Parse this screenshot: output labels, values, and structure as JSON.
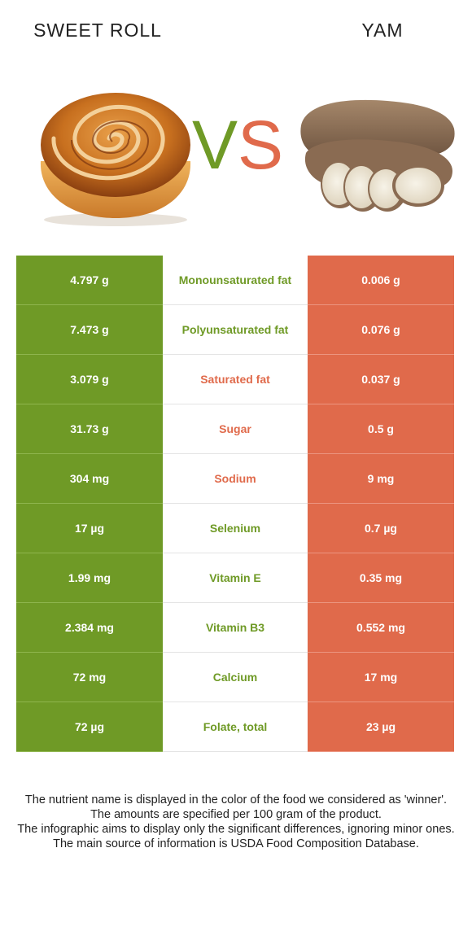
{
  "header": {
    "left_food": "SWEET ROLL",
    "right_food": "YAM"
  },
  "vs": {
    "v": "V",
    "s": "S"
  },
  "colors": {
    "left": "#6f9a26",
    "right": "#e06a4b"
  },
  "rows": [
    {
      "left": "4.797 g",
      "nutrient": "Monounsaturated fat",
      "right": "0.006 g",
      "winner": "left"
    },
    {
      "left": "7.473 g",
      "nutrient": "Polyunsaturated fat",
      "right": "0.076 g",
      "winner": "left"
    },
    {
      "left": "3.079 g",
      "nutrient": "Saturated fat",
      "right": "0.037 g",
      "winner": "right"
    },
    {
      "left": "31.73 g",
      "nutrient": "Sugar",
      "right": "0.5 g",
      "winner": "right"
    },
    {
      "left": "304 mg",
      "nutrient": "Sodium",
      "right": "9 mg",
      "winner": "right"
    },
    {
      "left": "17 µg",
      "nutrient": "Selenium",
      "right": "0.7 µg",
      "winner": "left"
    },
    {
      "left": "1.99 mg",
      "nutrient": "Vitamin E",
      "right": "0.35 mg",
      "winner": "left"
    },
    {
      "left": "2.384 mg",
      "nutrient": "Vitamin B3",
      "right": "0.552 mg",
      "winner": "left"
    },
    {
      "left": "72 mg",
      "nutrient": "Calcium",
      "right": "17 mg",
      "winner": "left"
    },
    {
      "left": "72 µg",
      "nutrient": "Folate, total",
      "right": "23 µg",
      "winner": "left"
    }
  ],
  "footer": {
    "line1": "The nutrient name is displayed in the color of the food we considered as 'winner'.",
    "line2": "The amounts are specified per 100 gram of the product.",
    "line3": "The infographic aims to display only the significant differences, ignoring minor ones.",
    "line4": "The main source of information is USDA Food Composition Database."
  }
}
